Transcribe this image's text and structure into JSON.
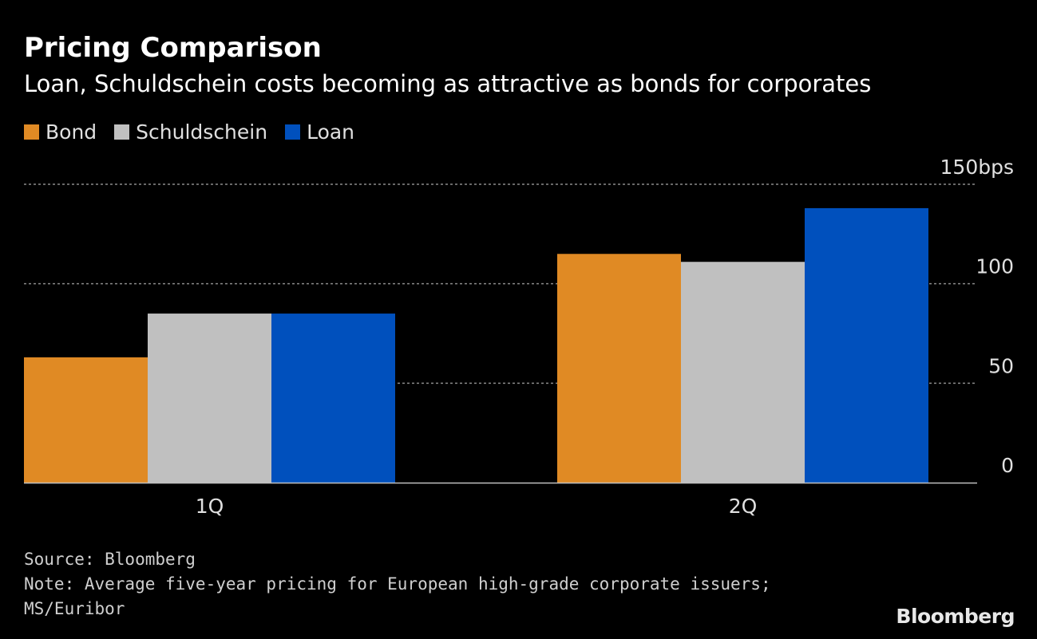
{
  "header": {
    "title": "Pricing Comparison",
    "subtitle": "Loan, Schuldschein costs becoming as attractive as bonds for corporates"
  },
  "legend": [
    {
      "label": "Bond",
      "color": "#e08a24"
    },
    {
      "label": "Schuldschein",
      "color": "#c0c0c0"
    },
    {
      "label": "Loan",
      "color": "#0050bd"
    }
  ],
  "chart_data": {
    "type": "bar",
    "categories": [
      "1Q",
      "2Q"
    ],
    "series": [
      {
        "name": "Bond",
        "values": [
          63,
          115
        ]
      },
      {
        "name": "Schuldschein",
        "values": [
          85,
          111
        ]
      },
      {
        "name": "Loan",
        "values": [
          85,
          138
        ]
      }
    ],
    "ylim": [
      0,
      150
    ],
    "yticks": [
      {
        "value": 0,
        "label": "0"
      },
      {
        "value": 50,
        "label": "50"
      },
      {
        "value": 100,
        "label": "100"
      },
      {
        "value": 150,
        "label": "150bps"
      }
    ],
    "grid": true,
    "legend_position": "top-left"
  },
  "footer": {
    "source": "Source: Bloomberg",
    "note_line1": "Note: Average five-year pricing for European high-grade corporate issuers;",
    "note_line2": "MS/Euribor",
    "brand": "Bloomberg"
  }
}
